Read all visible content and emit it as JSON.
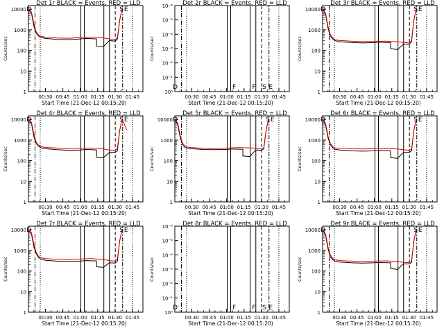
{
  "chart_data": [
    {
      "type": "line",
      "yscale": "log",
      "title": "Det 1r BLACK = Events, RED = LLD",
      "xlabel": "Start Time (21-Dec-12 00:15:20)",
      "ylabel": "Counts/sec",
      "xticks": [
        "00:30",
        "00:45",
        "01:00",
        "01:15",
        "01:30",
        "01:45"
      ],
      "yticks": [
        "1",
        "10",
        "100",
        "1000",
        "10000"
      ],
      "ylim": [
        1,
        15000
      ],
      "flags": [
        {
          "x": "00:15:40",
          "text": "D"
        },
        {
          "x": "01:35:30",
          "text": "S"
        },
        {
          "x": "01:39:30",
          "text": "E"
        }
      ],
      "series": [
        {
          "name": "Events",
          "color": "#000000",
          "x": [
            "00:16",
            "00:18",
            "00:20",
            "00:22",
            "00:24",
            "00:26",
            "00:30",
            "00:40",
            "00:50",
            "01:00",
            "01:05",
            "01:10",
            "01:14",
            "01:14",
            "01:20",
            "01:25",
            "01:30",
            "01:32",
            "01:34",
            "01:36"
          ],
          "y": [
            10000,
            6000,
            1500,
            700,
            500,
            430,
            380,
            340,
            330,
            360,
            380,
            370,
            360,
            160,
            150,
            300,
            280,
            350,
            3000,
            10000
          ]
        },
        {
          "name": "LLD",
          "color": "#dd0000",
          "x": [
            "00:16",
            "00:18",
            "00:20",
            "00:22",
            "00:24",
            "00:26",
            "00:30",
            "00:40",
            "00:50",
            "01:00",
            "01:10",
            "01:20",
            "01:25",
            "01:30",
            "01:32",
            "01:34",
            "01:36"
          ],
          "y": [
            10000,
            7000,
            2000,
            800,
            560,
            480,
            440,
            400,
            390,
            420,
            440,
            400,
            360,
            330,
            420,
            3000,
            10000
          ]
        }
      ]
    },
    {
      "type": "line",
      "yscale": "log",
      "title": "Det 2r BLACK = Events, RED = LLD",
      "xlabel": "Start Time (21-Dec-12 00:15:20)",
      "ylabel": "Counts/sec",
      "xticks": [
        "00:30",
        "00:45",
        "01:00",
        "01:15",
        "01:30",
        "01:45"
      ],
      "yticks": [
        "10⁰",
        "10⁻¹",
        "10⁻²",
        "10⁻³",
        "10⁻⁴",
        "10⁻⁵",
        "10⁻⁶"
      ],
      "ylim": [
        1,
        1.2
      ],
      "flags": [
        {
          "x": "00:15:40",
          "text": "D"
        },
        {
          "x": "01:06:30",
          "text": "F"
        },
        {
          "x": "01:23:30",
          "text": "F"
        },
        {
          "x": "01:32:30",
          "text": "S"
        },
        {
          "x": "01:38:00",
          "text": "E"
        }
      ],
      "series": []
    },
    {
      "type": "line",
      "yscale": "log",
      "title": "Det 3r BLACK = Events, RED = LLD",
      "xlabel": "Start Time (21-Dec-12 00:15:20)",
      "ylabel": "Counts/sec",
      "xticks": [
        "00:30",
        "00:45",
        "01:00",
        "01:15",
        "01:30",
        "01:45"
      ],
      "yticks": [
        "1",
        "10",
        "100",
        "1000",
        "10000"
      ],
      "ylim": [
        1,
        15000
      ],
      "flags": [
        {
          "x": "00:15:40",
          "text": "D"
        },
        {
          "x": "01:35:30",
          "text": "S"
        },
        {
          "x": "01:39:30",
          "text": "E"
        }
      ],
      "series": [
        {
          "name": "Events",
          "color": "#000000",
          "x": [
            "00:16",
            "00:18",
            "00:20",
            "00:22",
            "00:24",
            "00:26",
            "00:30",
            "00:40",
            "00:50",
            "01:00",
            "01:05",
            "01:10",
            "01:14",
            "01:14",
            "01:20",
            "01:25",
            "01:30",
            "01:32",
            "01:34",
            "01:36"
          ],
          "y": [
            10000,
            5000,
            1200,
            500,
            360,
            300,
            260,
            240,
            230,
            240,
            250,
            240,
            240,
            120,
            110,
            200,
            200,
            260,
            3000,
            10000
          ]
        },
        {
          "name": "LLD",
          "color": "#dd0000",
          "x": [
            "00:16",
            "00:18",
            "00:20",
            "00:22",
            "00:24",
            "00:26",
            "00:30",
            "00:40",
            "00:50",
            "01:00",
            "01:10",
            "01:20",
            "01:25",
            "01:30",
            "01:32",
            "01:34",
            "01:36"
          ],
          "y": [
            10000,
            6000,
            1500,
            600,
            400,
            330,
            300,
            280,
            270,
            270,
            280,
            260,
            240,
            230,
            300,
            3000,
            10000
          ]
        }
      ]
    },
    {
      "type": "line",
      "yscale": "log",
      "title": "Det 4r BLACK = Events, RED = LLD",
      "xlabel": "Start Time (21-Dec-12 00:15:20)",
      "ylabel": "Counts/sec",
      "xticks": [
        "00:30",
        "00:45",
        "01:00",
        "01:15",
        "01:30",
        "01:45"
      ],
      "yticks": [
        "1",
        "10",
        "100",
        "1000",
        "10000"
      ],
      "ylim": [
        1,
        15000
      ],
      "flags": [
        {
          "x": "00:15:40",
          "text": "D"
        },
        {
          "x": "01:35:30",
          "text": "S"
        },
        {
          "x": "01:39:30",
          "text": "E"
        }
      ],
      "series": [
        {
          "name": "Events",
          "color": "#000000",
          "x": [
            "00:16",
            "00:18",
            "00:20",
            "00:22",
            "00:24",
            "00:26",
            "00:30",
            "00:40",
            "00:50",
            "01:00",
            "01:05",
            "01:10",
            "01:14",
            "01:14",
            "01:20",
            "01:25",
            "01:30",
            "01:32",
            "01:34",
            "01:36"
          ],
          "y": [
            10000,
            6000,
            1500,
            700,
            500,
            430,
            380,
            340,
            320,
            330,
            350,
            340,
            330,
            150,
            140,
            250,
            250,
            300,
            3000,
            10000
          ]
        },
        {
          "name": "LLD",
          "color": "#dd0000",
          "x": [
            "00:16",
            "00:18",
            "00:20",
            "00:22",
            "00:24",
            "00:26",
            "00:30",
            "00:40",
            "00:50",
            "01:00",
            "01:10",
            "01:20",
            "01:25",
            "01:30",
            "01:32",
            "01:34",
            "01:36",
            "01:38",
            "01:40"
          ],
          "y": [
            10000,
            7000,
            2000,
            800,
            560,
            480,
            440,
            410,
            390,
            400,
            410,
            370,
            330,
            320,
            400,
            3000,
            10000,
            6000,
            3000
          ]
        }
      ]
    },
    {
      "type": "line",
      "yscale": "log",
      "title": "Det 5r BLACK = Events, RED = LLD",
      "xlabel": "Start Time (21-Dec-12 00:15:20)",
      "ylabel": "Counts/sec",
      "xticks": [
        "00:30",
        "00:45",
        "01:00",
        "01:15",
        "01:30",
        "01:45"
      ],
      "yticks": [
        "1",
        "10",
        "100",
        "1000",
        "10000"
      ],
      "ylim": [
        1,
        15000
      ],
      "flags": [
        {
          "x": "00:15:40",
          "text": "D"
        },
        {
          "x": "01:35:30",
          "text": "S"
        },
        {
          "x": "01:39:30",
          "text": "E"
        }
      ],
      "series": [
        {
          "name": "Events",
          "color": "#000000",
          "x": [
            "00:16",
            "00:18",
            "00:20",
            "00:22",
            "00:24",
            "00:26",
            "00:30",
            "00:40",
            "00:50",
            "01:00",
            "01:05",
            "01:10",
            "01:14",
            "01:14",
            "01:20",
            "01:25",
            "01:30",
            "01:32",
            "01:34",
            "01:36"
          ],
          "y": [
            10000,
            5000,
            1300,
            600,
            450,
            400,
            380,
            350,
            340,
            350,
            370,
            360,
            360,
            170,
            160,
            330,
            320,
            380,
            3000,
            10000
          ]
        },
        {
          "name": "LLD",
          "color": "#dd0000",
          "x": [
            "00:16",
            "00:18",
            "00:20",
            "00:22",
            "00:24",
            "00:26",
            "00:30",
            "00:40",
            "00:50",
            "01:00",
            "01:10",
            "01:20",
            "01:25",
            "01:30",
            "01:32",
            "01:34",
            "01:36"
          ],
          "y": [
            10000,
            6000,
            1700,
            700,
            520,
            460,
            430,
            400,
            390,
            410,
            430,
            420,
            400,
            380,
            420,
            3000,
            10000
          ]
        }
      ]
    },
    {
      "type": "line",
      "yscale": "log",
      "title": "Det 6r BLACK = Events, RED = LLD",
      "xlabel": "Start Time (21-Dec-12 00:15:20)",
      "ylabel": "Counts/sec",
      "xticks": [
        "00:30",
        "00:45",
        "01:00",
        "01:15",
        "01:30",
        "01:45"
      ],
      "yticks": [
        "1",
        "10",
        "100",
        "1000",
        "10000"
      ],
      "ylim": [
        1,
        15000
      ],
      "flags": [
        {
          "x": "00:15:40",
          "text": "D"
        },
        {
          "x": "01:35:30",
          "text": "S"
        },
        {
          "x": "01:39:30",
          "text": "E"
        }
      ],
      "series": [
        {
          "name": "Events",
          "color": "#000000",
          "x": [
            "00:16",
            "00:18",
            "00:20",
            "00:22",
            "00:24",
            "00:26",
            "00:30",
            "00:40",
            "00:50",
            "01:00",
            "01:05",
            "01:10",
            "01:14",
            "01:14",
            "01:20",
            "01:25",
            "01:30",
            "01:32",
            "01:34",
            "01:36"
          ],
          "y": [
            10000,
            5000,
            1300,
            600,
            420,
            360,
            330,
            300,
            290,
            300,
            310,
            300,
            300,
            140,
            130,
            250,
            250,
            300,
            3000,
            10000
          ]
        },
        {
          "name": "LLD",
          "color": "#dd0000",
          "x": [
            "00:16",
            "00:18",
            "00:20",
            "00:22",
            "00:24",
            "00:26",
            "00:30",
            "00:40",
            "00:50",
            "01:00",
            "01:10",
            "01:20",
            "01:25",
            "01:30",
            "01:32",
            "01:34",
            "01:36"
          ],
          "y": [
            10000,
            6000,
            1600,
            700,
            480,
            420,
            400,
            380,
            370,
            380,
            390,
            370,
            340,
            320,
            360,
            3000,
            10000
          ]
        }
      ]
    },
    {
      "type": "line",
      "yscale": "log",
      "title": "Det 7r BLACK = Events, RED = LLD",
      "xlabel": "Start Time (21-Dec-12 00:15:20)",
      "ylabel": "Counts/sec",
      "xticks": [
        "00:30",
        "00:45",
        "01:00",
        "01:15",
        "01:30",
        "01:45"
      ],
      "yticks": [
        "1",
        "10",
        "100",
        "1000",
        "10000"
      ],
      "ylim": [
        1,
        15000
      ],
      "flags": [
        {
          "x": "00:15:40",
          "text": "D"
        },
        {
          "x": "01:35:30",
          "text": "S"
        },
        {
          "x": "01:39:30",
          "text": "E"
        }
      ],
      "series": [
        {
          "name": "Events",
          "color": "#000000",
          "x": [
            "00:16",
            "00:18",
            "00:20",
            "00:22",
            "00:24",
            "00:26",
            "00:30",
            "00:40",
            "00:50",
            "01:00",
            "01:05",
            "01:10",
            "01:14",
            "01:14",
            "01:20",
            "01:25",
            "01:30",
            "01:32",
            "01:34",
            "01:36"
          ],
          "y": [
            10000,
            6000,
            1500,
            700,
            450,
            380,
            330,
            300,
            290,
            300,
            320,
            310,
            310,
            160,
            150,
            250,
            240,
            300,
            3000,
            10000
          ]
        },
        {
          "name": "LLD",
          "color": "#dd0000",
          "x": [
            "00:16",
            "00:18",
            "00:20",
            "00:22",
            "00:24",
            "00:26",
            "00:30",
            "00:40",
            "00:50",
            "01:00",
            "01:10",
            "01:20",
            "01:25",
            "01:30",
            "01:32",
            "01:34",
            "01:36"
          ],
          "y": [
            10000,
            7000,
            2000,
            800,
            520,
            440,
            400,
            370,
            360,
            380,
            400,
            360,
            320,
            300,
            380,
            3000,
            10000
          ]
        }
      ]
    },
    {
      "type": "line",
      "yscale": "log",
      "title": "Det 8r BLACK = Events, RED = LLD",
      "xlabel": "Start Time (21-Dec-12 00:15:20)",
      "ylabel": "Counts/sec",
      "xticks": [
        "00:30",
        "00:45",
        "01:00",
        "01:15",
        "01:30",
        "01:45"
      ],
      "yticks": [
        "10⁰",
        "10⁻¹",
        "10⁻²",
        "10⁻³",
        "10⁻⁴",
        "10⁻⁵",
        "10⁻⁶"
      ],
      "ylim": [
        1,
        1.2
      ],
      "flags": [
        {
          "x": "00:15:40",
          "text": "D"
        },
        {
          "x": "01:06:30",
          "text": "F"
        },
        {
          "x": "01:23:30",
          "text": "F"
        },
        {
          "x": "01:32:30",
          "text": "S"
        },
        {
          "x": "01:38:00",
          "text": "E"
        }
      ],
      "series": []
    },
    {
      "type": "line",
      "yscale": "log",
      "title": "Det 9r BLACK = Events, RED = LLD",
      "xlabel": "Start Time (21-Dec-12 00:15:20)",
      "ylabel": "Counts/sec",
      "xticks": [
        "00:30",
        "00:45",
        "01:00",
        "01:15",
        "01:30",
        "01:45"
      ],
      "yticks": [
        "1",
        "10",
        "100",
        "1000",
        "10000"
      ],
      "ylim": [
        1,
        15000
      ],
      "flags": [
        {
          "x": "00:15:40",
          "text": "D"
        },
        {
          "x": "01:35:30",
          "text": "S"
        },
        {
          "x": "01:39:30",
          "text": "E"
        }
      ],
      "series": [
        {
          "name": "Events",
          "color": "#000000",
          "x": [
            "00:16",
            "00:18",
            "00:20",
            "00:22",
            "00:24",
            "00:26",
            "00:30",
            "00:40",
            "00:50",
            "01:00",
            "01:05",
            "01:10",
            "01:14",
            "01:14",
            "01:20",
            "01:25",
            "01:30",
            "01:32",
            "01:34",
            "01:36"
          ],
          "y": [
            10000,
            5000,
            1200,
            500,
            360,
            300,
            270,
            250,
            240,
            250,
            260,
            250,
            250,
            130,
            120,
            220,
            220,
            260,
            3000,
            10000
          ]
        },
        {
          "name": "LLD",
          "color": "#dd0000",
          "x": [
            "00:16",
            "00:18",
            "00:20",
            "00:22",
            "00:24",
            "00:26",
            "00:30",
            "00:40",
            "00:50",
            "01:00",
            "01:10",
            "01:20",
            "01:25",
            "01:30",
            "01:32",
            "01:34",
            "01:36"
          ],
          "y": [
            10000,
            6000,
            1500,
            600,
            420,
            350,
            320,
            300,
            290,
            300,
            310,
            290,
            260,
            250,
            300,
            3000,
            10000
          ]
        }
      ]
    }
  ]
}
